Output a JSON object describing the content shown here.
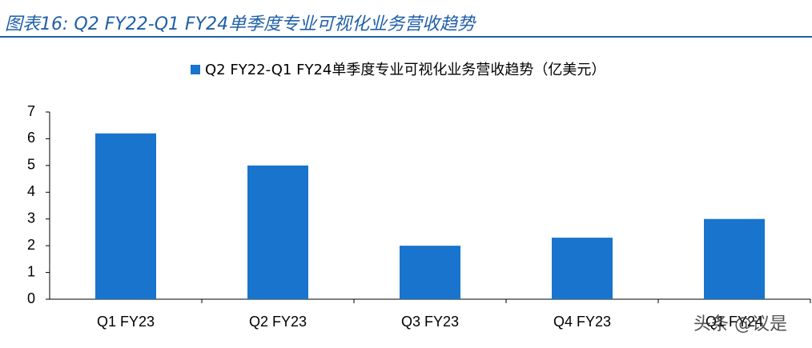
{
  "header": {
    "title": "图表16:  Q2 FY22-Q1 FY24单季度专业可视化业务营收趋势"
  },
  "chart_data": {
    "type": "bar",
    "legend": "Q2 FY22-Q1 FY24单季度专业可视化业务营收趋势（亿美元）",
    "categories": [
      "Q1 FY23",
      "Q2 FY23",
      "Q3 FY23",
      "Q4 FY23",
      "Q1 FY24"
    ],
    "values": [
      6.2,
      5.0,
      2.0,
      2.3,
      3.0
    ],
    "color": "#1874cd",
    "ylim": [
      0,
      7
    ],
    "yticks": [
      0,
      1,
      2,
      3,
      4,
      5,
      6,
      7
    ],
    "grid": false
  },
  "watermark": "头条 @议是"
}
